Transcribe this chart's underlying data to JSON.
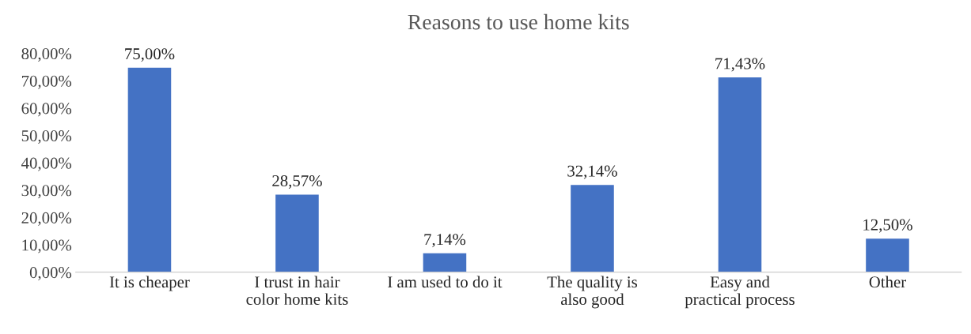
{
  "chart_data": {
    "type": "bar",
    "title": "Reasons to use home kits",
    "categories": [
      "It is cheaper",
      "I trust in hair\ncolor home kits",
      "I am used to do it",
      "The quality is\nalso good",
      "Easy and\npractical process",
      "Other"
    ],
    "values": [
      75.0,
      28.57,
      7.14,
      32.14,
      71.43,
      12.5
    ],
    "value_labels": [
      "75,00%",
      "28,57%",
      "7,14%",
      "32,14%",
      "71,43%",
      "12,50%"
    ],
    "color": "#4472c4",
    "ylim": [
      0,
      80
    ],
    "yticks": [
      {
        "value": 0,
        "label": "0,00%"
      },
      {
        "value": 10,
        "label": "10,00%"
      },
      {
        "value": 20,
        "label": "20,00%"
      },
      {
        "value": 30,
        "label": "30,00%"
      },
      {
        "value": 40,
        "label": "40,00%"
      },
      {
        "value": 50,
        "label": "50,00%"
      },
      {
        "value": 60,
        "label": "60,00%"
      },
      {
        "value": 70,
        "label": "70,00%"
      },
      {
        "value": 80,
        "label": "80,00%"
      }
    ],
    "grid": false,
    "legend": false
  }
}
